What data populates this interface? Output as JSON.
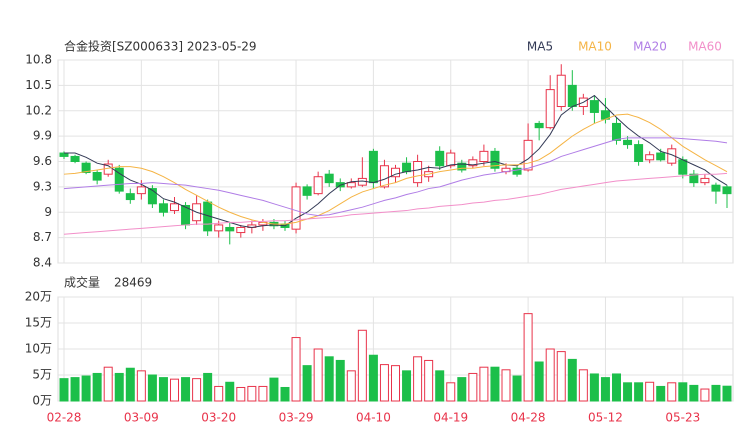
{
  "chart_data": [
    {
      "type": "candlestick",
      "title": "合金投资[SZ000633] 2023-05-29",
      "up_color": "#e8334a",
      "down_color": "#1cbf4a",
      "open": [
        9.7,
        9.66,
        9.58,
        9.47,
        9.45,
        9.52,
        9.22,
        9.22,
        9.28,
        9.1,
        9.02,
        9.08,
        8.9,
        9.12,
        8.78,
        8.82,
        8.76,
        8.82,
        8.85,
        8.88,
        8.86,
        8.8,
        9.3,
        9.22,
        9.45,
        9.35,
        9.3,
        9.32,
        9.72,
        9.3,
        9.42,
        9.58,
        9.35,
        9.42,
        9.72,
        9.55,
        9.58,
        9.55,
        9.6,
        9.72,
        9.48,
        9.52,
        9.5,
        10.05,
        10.0,
        10.25,
        10.5,
        10.25,
        10.32,
        10.2,
        10.05,
        9.85,
        9.8,
        9.62,
        9.7,
        9.58,
        9.62,
        9.45,
        9.35,
        9.32,
        9.3
      ],
      "high": [
        9.72,
        9.68,
        9.6,
        9.5,
        9.62,
        9.56,
        9.28,
        9.38,
        9.32,
        9.15,
        9.18,
        9.12,
        9.2,
        9.15,
        8.9,
        8.88,
        8.85,
        8.9,
        8.92,
        8.92,
        8.9,
        9.35,
        9.33,
        9.48,
        9.5,
        9.4,
        9.4,
        9.65,
        9.75,
        9.62,
        9.56,
        9.65,
        9.68,
        9.55,
        9.78,
        9.74,
        9.62,
        9.66,
        9.8,
        9.76,
        9.58,
        9.55,
        10.05,
        10.08,
        10.62,
        10.75,
        10.68,
        10.4,
        10.38,
        10.35,
        10.12,
        9.9,
        9.85,
        9.72,
        9.75,
        9.8,
        9.66,
        9.5,
        9.45,
        9.35,
        9.32
      ],
      "low": [
        9.63,
        9.58,
        9.45,
        9.33,
        9.42,
        9.22,
        9.1,
        9.15,
        9.05,
        8.95,
        8.98,
        8.8,
        8.85,
        8.72,
        8.7,
        8.62,
        8.7,
        8.75,
        8.78,
        8.8,
        8.78,
        8.75,
        9.15,
        9.2,
        9.3,
        9.25,
        9.28,
        9.3,
        9.28,
        9.28,
        9.35,
        9.45,
        9.3,
        9.36,
        9.5,
        9.52,
        9.47,
        9.52,
        9.55,
        9.48,
        9.45,
        9.42,
        9.48,
        9.85,
        9.98,
        10.2,
        10.2,
        10.15,
        10.05,
        10.05,
        9.8,
        9.75,
        9.55,
        9.58,
        9.6,
        9.55,
        9.4,
        9.3,
        9.32,
        9.1,
        9.05
      ],
      "close": [
        9.66,
        9.6,
        9.47,
        9.38,
        9.57,
        9.25,
        9.15,
        9.3,
        9.1,
        9.0,
        9.1,
        8.85,
        9.1,
        8.78,
        8.85,
        8.78,
        8.82,
        8.85,
        8.88,
        8.84,
        8.82,
        9.3,
        9.2,
        9.42,
        9.35,
        9.3,
        9.35,
        9.4,
        9.35,
        9.55,
        9.52,
        9.48,
        9.6,
        9.48,
        9.55,
        9.7,
        9.5,
        9.62,
        9.72,
        9.52,
        9.52,
        9.45,
        9.85,
        10.0,
        10.45,
        10.62,
        10.25,
        10.35,
        10.18,
        10.1,
        9.85,
        9.8,
        9.6,
        9.68,
        9.62,
        9.75,
        9.45,
        9.35,
        9.4,
        9.25,
        9.22
      ],
      "series": [
        {
          "name": "MA5",
          "color": "#333a56",
          "values": [
            9.7,
            9.7,
            9.65,
            9.58,
            9.55,
            9.46,
            9.38,
            9.33,
            9.26,
            9.16,
            9.12,
            9.06,
            9.0,
            8.96,
            8.92,
            8.88,
            8.84,
            8.82,
            8.84,
            8.85,
            8.84,
            8.93,
            9.0,
            9.1,
            9.22,
            9.32,
            9.36,
            9.37,
            9.35,
            9.39,
            9.45,
            9.48,
            9.5,
            9.53,
            9.52,
            9.56,
            9.57,
            9.56,
            9.58,
            9.6,
            9.56,
            9.55,
            9.63,
            9.75,
            9.92,
            10.15,
            10.25,
            10.3,
            10.38,
            10.25,
            10.12,
            10.0,
            9.9,
            9.82,
            9.72,
            9.68,
            9.62,
            9.56,
            9.5,
            9.4,
            9.32
          ]
        },
        {
          "name": "MA10",
          "color": "#f5b445",
          "values": [
            9.45,
            9.46,
            9.48,
            9.5,
            9.52,
            9.54,
            9.54,
            9.52,
            9.48,
            9.42,
            9.35,
            9.27,
            9.2,
            9.13,
            9.06,
            9.0,
            8.95,
            8.91,
            8.88,
            8.86,
            8.86,
            8.88,
            8.92,
            8.96,
            9.02,
            9.1,
            9.18,
            9.24,
            9.28,
            9.32,
            9.35,
            9.4,
            9.43,
            9.45,
            9.48,
            9.5,
            9.52,
            9.52,
            9.54,
            9.55,
            9.56,
            9.56,
            9.58,
            9.62,
            9.7,
            9.8,
            9.9,
            9.98,
            10.05,
            10.1,
            10.15,
            10.16,
            10.12,
            10.06,
            9.98,
            9.88,
            9.78,
            9.7,
            9.62,
            9.55,
            9.48
          ]
        },
        {
          "name": "MA20",
          "color": "#b07de6",
          "values": [
            9.28,
            9.29,
            9.3,
            9.31,
            9.32,
            9.33,
            9.34,
            9.34,
            9.35,
            9.34,
            9.33,
            9.32,
            9.3,
            9.28,
            9.26,
            9.23,
            9.2,
            9.17,
            9.14,
            9.1,
            9.06,
            9.02,
            8.98,
            8.96,
            8.97,
            9.0,
            9.03,
            9.06,
            9.1,
            9.14,
            9.17,
            9.21,
            9.24,
            9.28,
            9.3,
            9.34,
            9.38,
            9.41,
            9.44,
            9.46,
            9.48,
            9.5,
            9.52,
            9.56,
            9.6,
            9.66,
            9.7,
            9.74,
            9.78,
            9.82,
            9.86,
            9.88,
            9.88,
            9.88,
            9.88,
            9.88,
            9.87,
            9.86,
            9.85,
            9.84,
            9.82
          ]
        },
        {
          "name": "MA60",
          "color": "#f28fc9",
          "values": [
            8.74,
            8.75,
            8.76,
            8.77,
            8.78,
            8.79,
            8.8,
            8.81,
            8.82,
            8.83,
            8.84,
            8.85,
            8.86,
            8.86,
            8.87,
            8.88,
            8.88,
            8.89,
            8.89,
            8.9,
            8.9,
            8.91,
            8.92,
            8.93,
            8.94,
            8.95,
            8.97,
            8.98,
            8.99,
            9.0,
            9.01,
            9.02,
            9.04,
            9.05,
            9.07,
            9.08,
            9.09,
            9.11,
            9.12,
            9.14,
            9.15,
            9.17,
            9.19,
            9.21,
            9.24,
            9.27,
            9.29,
            9.31,
            9.33,
            9.35,
            9.37,
            9.38,
            9.39,
            9.4,
            9.41,
            9.42,
            9.43,
            9.44,
            9.45,
            9.45,
            9.46
          ]
        }
      ],
      "ylim": [
        8.4,
        10.8
      ],
      "yticks": [
        8.4,
        8.7,
        9,
        9.3,
        9.6,
        9.9,
        10.2,
        10.5,
        10.8
      ],
      "grid": true
    },
    {
      "type": "volume",
      "title": "成交量",
      "categories": [
        "02-28",
        null,
        null,
        null,
        null,
        null,
        null,
        "03-09",
        null,
        null,
        null,
        null,
        null,
        null,
        "03-20",
        null,
        null,
        null,
        null,
        null,
        null,
        "03-29",
        null,
        null,
        null,
        null,
        null,
        null,
        "04-10",
        null,
        null,
        null,
        null,
        null,
        null,
        "04-19",
        null,
        null,
        null,
        null,
        null,
        null,
        "04-28",
        null,
        null,
        null,
        null,
        null,
        null,
        "05-12",
        null,
        null,
        null,
        null,
        null,
        null,
        "05-23",
        null,
        null,
        null,
        null
      ],
      "values": [
        43000,
        45000,
        48000,
        53000,
        65000,
        53000,
        63000,
        58000,
        50000,
        45000,
        42000,
        45000,
        43000,
        53000,
        28000,
        36000,
        26000,
        28000,
        28000,
        44000,
        26000,
        122000,
        68000,
        100000,
        85000,
        78000,
        58000,
        136000,
        88000,
        70000,
        68000,
        58000,
        85000,
        78000,
        58000,
        35000,
        45000,
        53000,
        65000,
        65000,
        60000,
        48000,
        168000,
        75000,
        100000,
        95000,
        80000,
        60000,
        52000,
        45000,
        52000,
        35000,
        35000,
        36000,
        28000,
        35000,
        35000,
        30000,
        23000,
        30000,
        28469
      ],
      "ylim": [
        0,
        200000
      ],
      "yticks": [
        {
          "value": 0,
          "label": "0万"
        },
        {
          "value": 50000,
          "label": "5万"
        },
        {
          "value": 100000,
          "label": "10万"
        },
        {
          "value": 150000,
          "label": "15万"
        },
        {
          "value": 200000,
          "label": "20万"
        }
      ],
      "grid": true
    }
  ]
}
